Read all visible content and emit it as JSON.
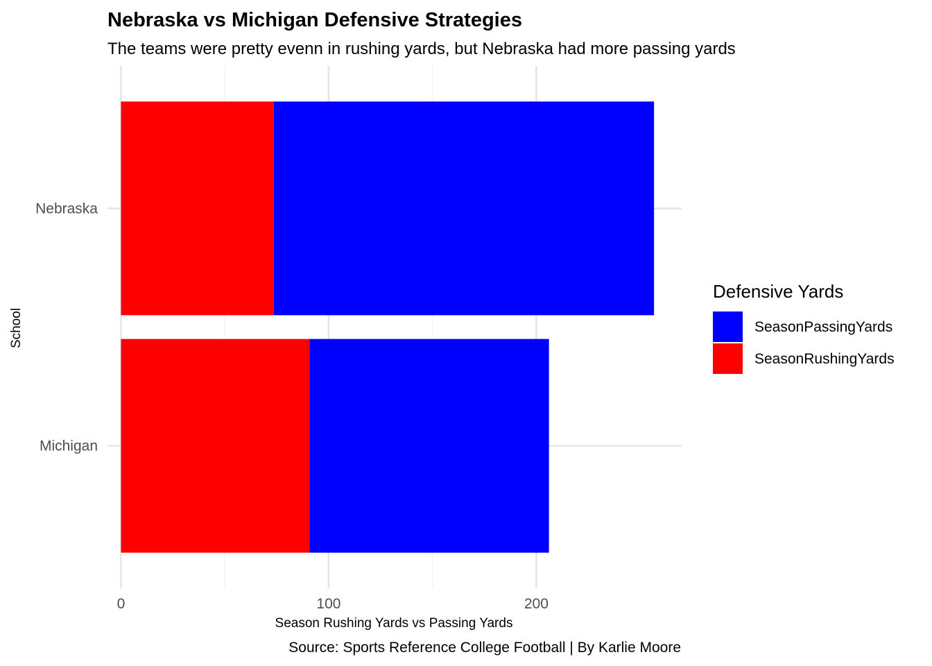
{
  "chart_data": {
    "type": "bar",
    "orientation": "horizontal",
    "stacked": true,
    "title": "Nebraska vs Michigan Defensive Strategies",
    "subtitle": "The teams were pretty evenn in rushing yards, but Nebraska had more passing yards",
    "xlabel": "Season Rushing Yards vs Passing Yards",
    "ylabel": "School",
    "caption": "Source: Sports Reference College Football | By Karlie Moore",
    "categories": [
      "Nebraska",
      "Michigan"
    ],
    "series": [
      {
        "name": "SeasonRushingYards",
        "color": "#ff0000",
        "values": [
          73.6,
          90.8
        ]
      },
      {
        "name": "SeasonPassingYards",
        "color": "#0000ff",
        "values": [
          183.1,
          115.3
        ]
      }
    ],
    "xlim": [
      -6.5,
      270
    ],
    "xticks": [
      0,
      100,
      200
    ],
    "grid": true,
    "legend": {
      "title": "Defensive Yards",
      "position": "right",
      "order": [
        "SeasonPassingYards",
        "SeasonRushingYards"
      ]
    }
  }
}
